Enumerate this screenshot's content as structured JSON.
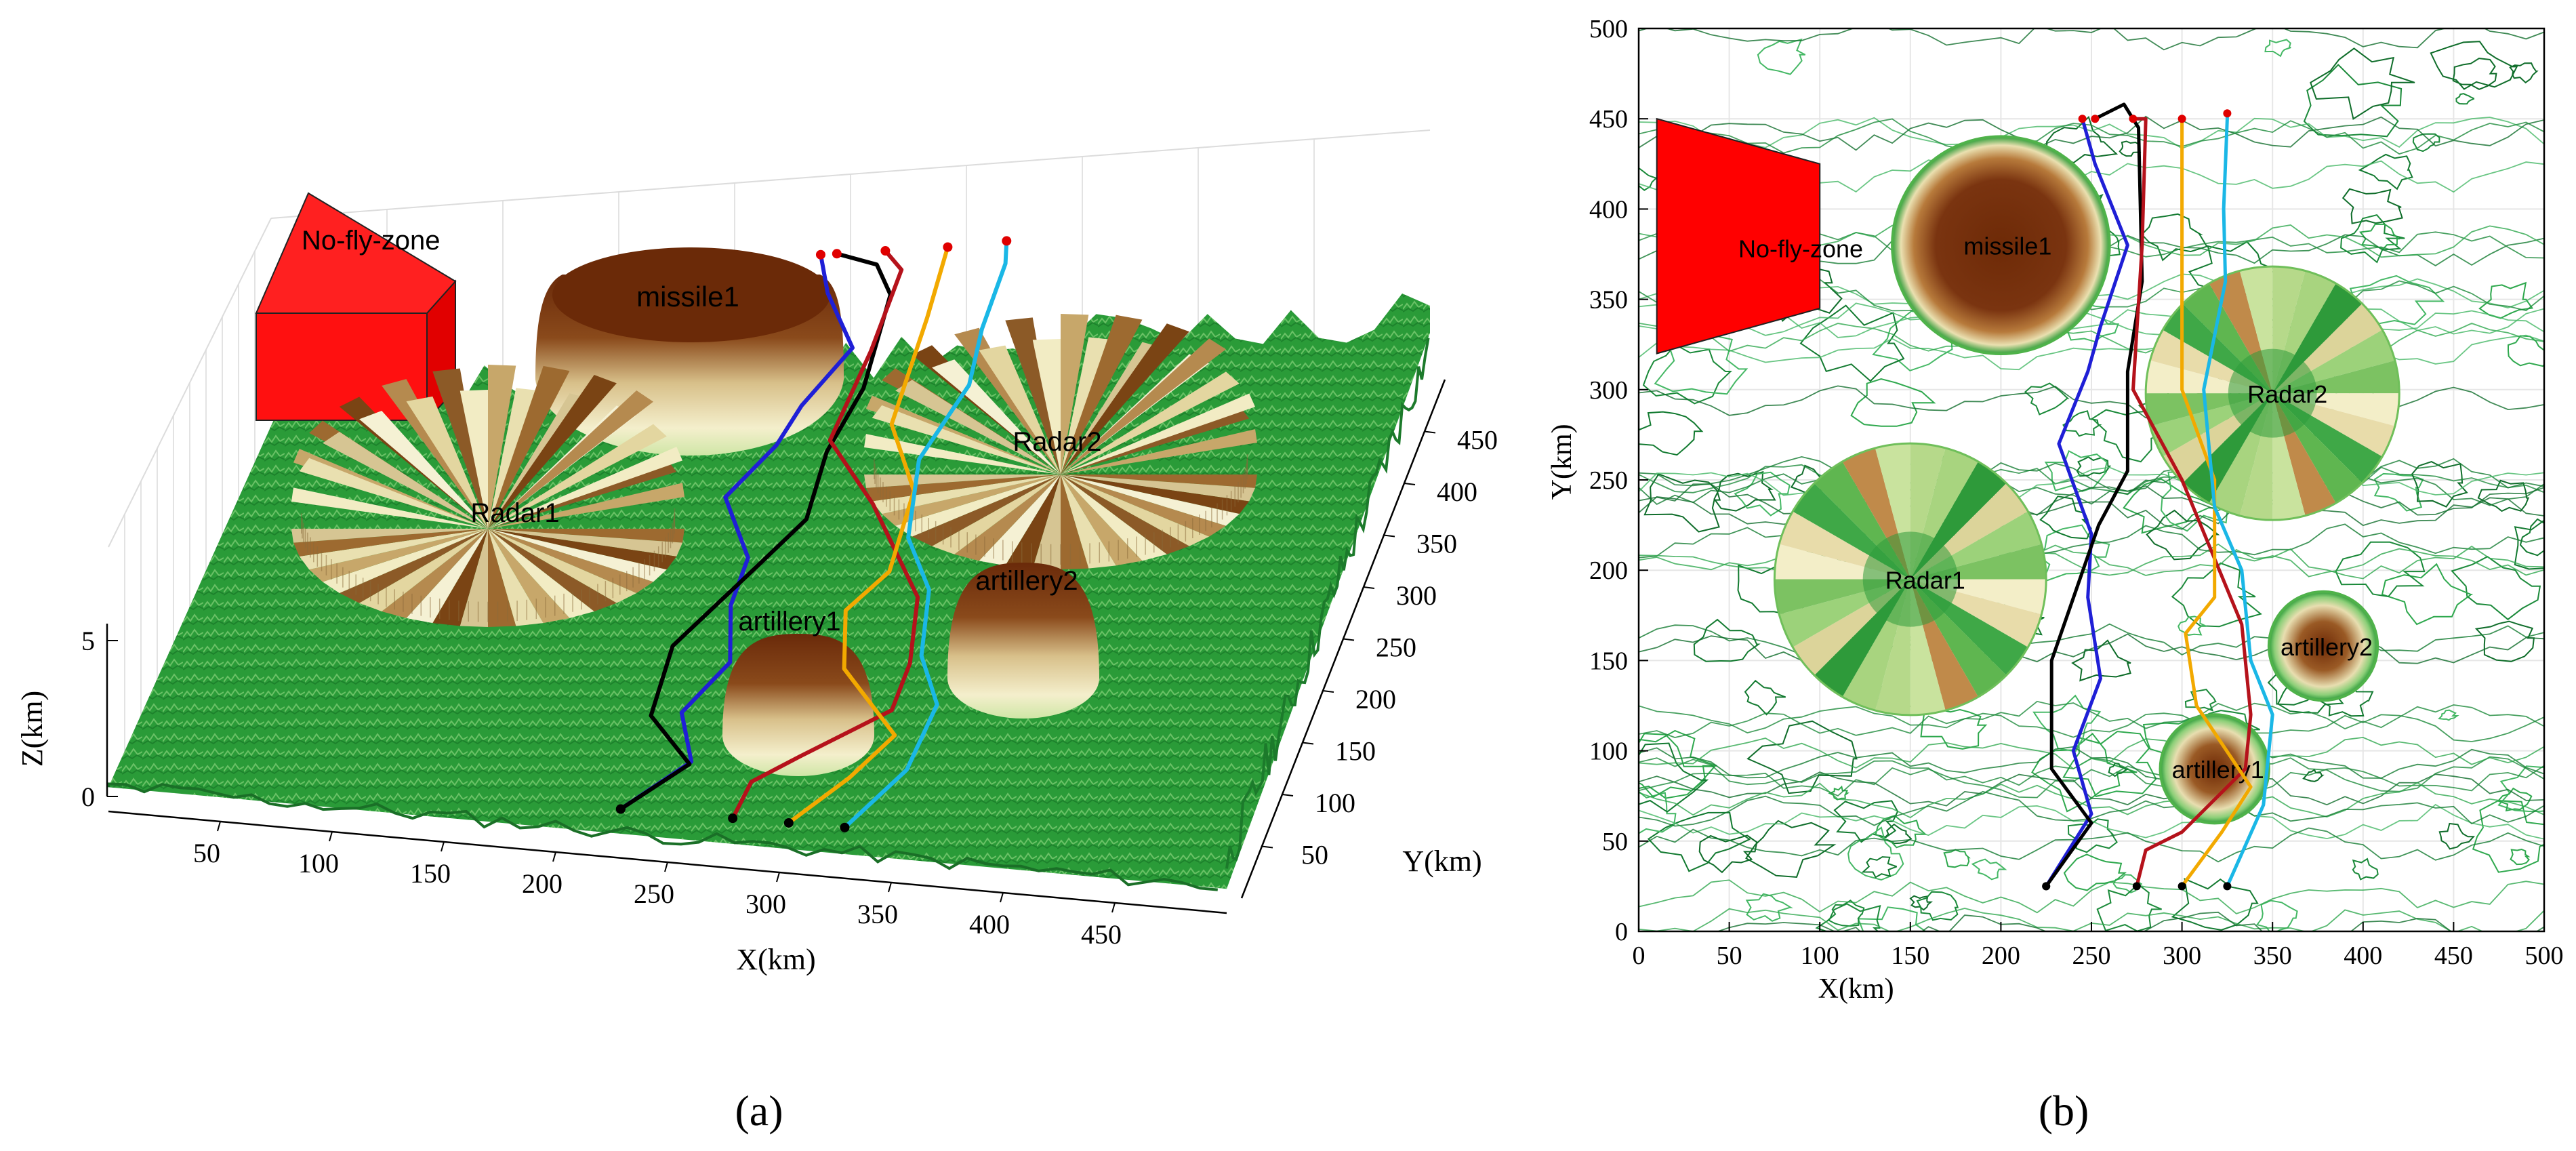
{
  "chart_data": [
    {
      "type": "surface3d",
      "panel_label": "(a)",
      "xlabel": "X(km)",
      "ylabel": "Y(km)",
      "zlabel": "Z(km)",
      "x_ticks": [
        50,
        100,
        150,
        200,
        250,
        300,
        350,
        400,
        450
      ],
      "y_ticks": [
        50,
        100,
        150,
        200,
        250,
        300,
        350,
        400,
        450
      ],
      "z_ticks": [
        0,
        5
      ],
      "xlim": [
        0,
        500
      ],
      "ylim": [
        0,
        500
      ],
      "zlim": [
        0,
        8
      ],
      "grid": true,
      "surface_colormap": "green",
      "threats": [
        {
          "label": "No-fly-zone",
          "kind": "prism",
          "color": "#ff0000",
          "polygon": [
            [
              10,
              320
            ],
            [
              10,
              450
            ],
            [
              100,
              425
            ],
            [
              100,
              345
            ]
          ]
        },
        {
          "label": "missile1",
          "kind": "dome",
          "x": 200,
          "y": 380,
          "r": 60
        },
        {
          "label": "Radar1",
          "kind": "radar",
          "x": 150,
          "y": 195,
          "r": 75
        },
        {
          "label": "Radar2",
          "kind": "radar",
          "x": 350,
          "y": 298,
          "r": 70
        },
        {
          "label": "artillery1",
          "kind": "dome",
          "x": 318,
          "y": 90,
          "r": 30
        },
        {
          "label": "artillery2",
          "kind": "dome",
          "x": 378,
          "y": 158,
          "r": 30
        }
      ],
      "paths": [
        {
          "color": "#1f1fd6",
          "points": [
            [
              225,
              25
            ],
            [
              250,
              65
            ],
            [
              240,
              100
            ],
            [
              255,
              140
            ],
            [
              248,
              185
            ],
            [
              250,
              220
            ],
            [
              232,
              270
            ],
            [
              248,
              310
            ],
            [
              255,
              335
            ],
            [
              270,
              380
            ],
            [
              252,
              425
            ],
            [
              245,
              450
            ]
          ]
        },
        {
          "color": "#000000",
          "points": [
            [
              225,
              25
            ],
            [
              250,
              60
            ],
            [
              228,
              90
            ],
            [
              228,
              150
            ],
            [
              254,
              225
            ],
            [
              270,
              255
            ],
            [
              270,
              310
            ],
            [
              278,
              360
            ],
            [
              276,
              445
            ],
            [
              268,
              458
            ],
            [
              252,
              450
            ]
          ]
        },
        {
          "color": "#b5121b",
          "points": [
            [
              275,
              25
            ],
            [
              280,
              45
            ],
            [
              300,
              55
            ],
            [
              335,
              90
            ],
            [
              338,
              120
            ],
            [
              333,
              170
            ],
            [
              300,
              250
            ],
            [
              273,
              300
            ],
            [
              278,
              380
            ],
            [
              280,
              450
            ],
            [
              273,
              450
            ]
          ]
        },
        {
          "color": "#f2a900",
          "points": [
            [
              300,
              25
            ],
            [
              322,
              55
            ],
            [
              338,
              80
            ],
            [
              308,
              125
            ],
            [
              302,
              165
            ],
            [
              318,
              185
            ],
            [
              318,
              250
            ],
            [
              300,
              300
            ],
            [
              300,
              395
            ],
            [
              300,
              450
            ]
          ]
        },
        {
          "color": "#1ab7e6",
          "points": [
            [
              325,
              25
            ],
            [
              345,
              70
            ],
            [
              350,
              120
            ],
            [
              338,
              150
            ],
            [
              333,
              200
            ],
            [
              318,
              235
            ],
            [
              312,
              300
            ],
            [
              324,
              360
            ],
            [
              323,
              400
            ],
            [
              325,
              450
            ],
            [
              325,
              453
            ]
          ]
        }
      ]
    },
    {
      "type": "contour",
      "panel_label": "(b)",
      "xlabel": "X(km)",
      "ylabel": "Y(km)",
      "x_ticks": [
        0,
        50,
        100,
        150,
        200,
        250,
        300,
        350,
        400,
        450,
        500
      ],
      "y_ticks": [
        0,
        50,
        100,
        150,
        200,
        250,
        300,
        350,
        400,
        450,
        500
      ],
      "xlim": [
        0,
        500
      ],
      "ylim": [
        0,
        500
      ],
      "grid": true,
      "threats_ref": "same as panel (a)"
    }
  ],
  "labels": {
    "no_fly": "No-fly-zone",
    "missile1": "missile1",
    "radar1": "Radar1",
    "radar2": "Radar2",
    "artillery1": "artillery1",
    "artillery2": "artillery2"
  }
}
